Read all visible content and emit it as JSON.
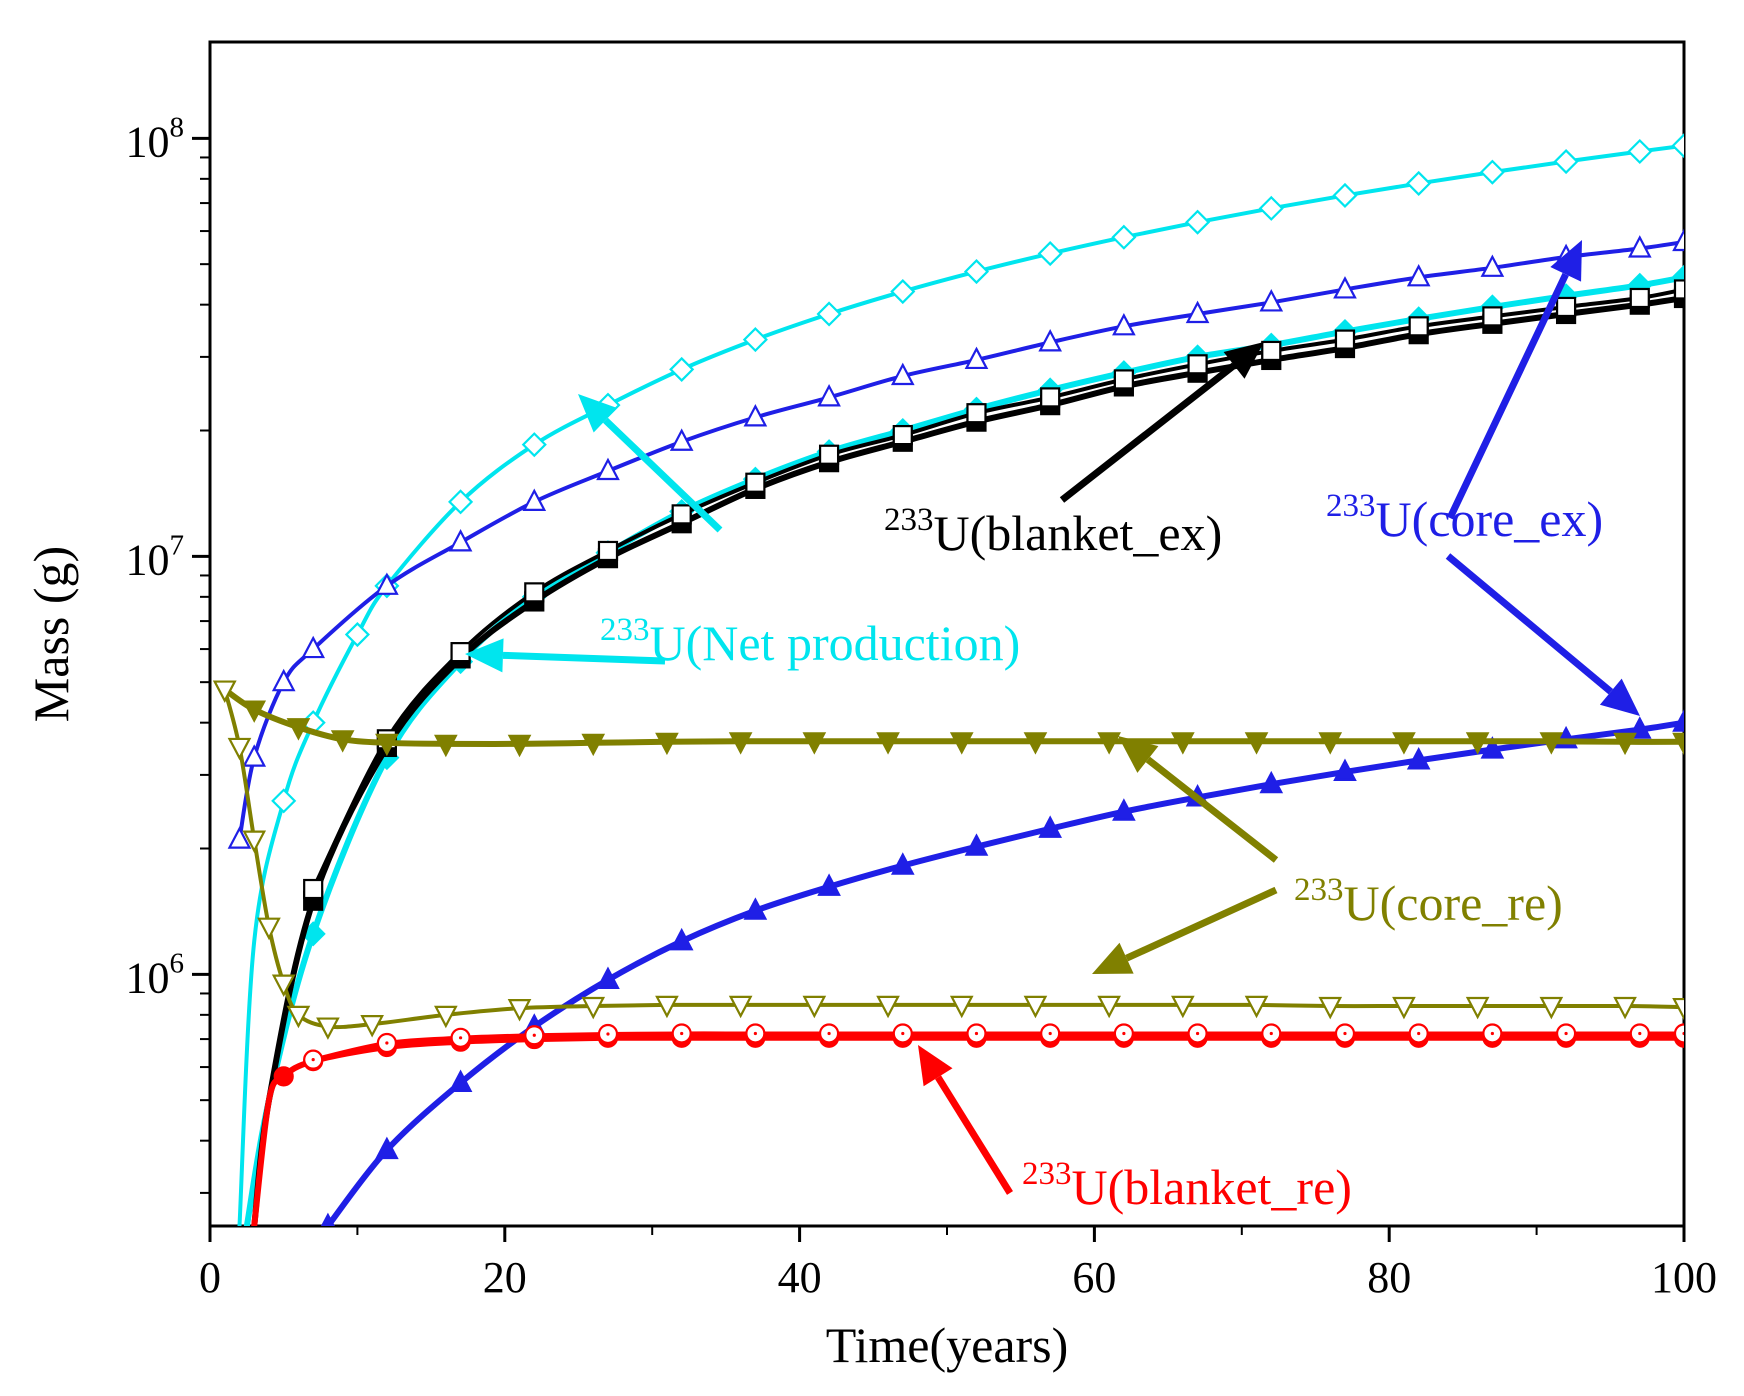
{
  "chart_data": {
    "type": "line",
    "title": "",
    "xlabel": "Time(years)",
    "ylabel": "Mass  (g)",
    "xlim": [
      0,
      100
    ],
    "ylim": [
      250000,
      170000000
    ],
    "yscale": "log",
    "xticks": [
      0,
      20,
      40,
      60,
      80,
      100
    ],
    "xtick_labels": [
      "0",
      "20",
      "40",
      "60",
      "80",
      "100"
    ],
    "yticks": [
      1000000,
      10000000,
      100000000
    ],
    "ytick_labels": [
      {
        "base": "10",
        "exp": "6"
      },
      {
        "base": "10",
        "exp": "7"
      },
      {
        "base": "10",
        "exp": "8"
      }
    ],
    "grid": false,
    "series": [
      {
        "name": "233U(Net production)",
        "color": "#00e5ee",
        "marker": "diamond-open",
        "x": [
          2,
          3,
          5,
          7,
          10,
          12,
          17,
          22,
          27,
          32,
          37,
          42,
          47,
          52,
          57,
          62,
          67,
          72,
          77,
          82,
          87,
          92,
          97,
          100
        ],
        "y": [
          250000,
          1200000,
          2600000,
          4000000,
          6500000,
          8500000,
          13500000,
          18500000,
          23000000,
          28000000,
          33000000,
          38000000,
          43000000,
          48000000,
          53000000,
          58000000,
          63000000,
          68000000,
          73000000,
          78000000,
          83000000,
          88000000,
          93000000,
          96000000
        ]
      },
      {
        "name": "233U(core_ex) open",
        "color": "#1f1fe6",
        "marker": "triangle-up-open",
        "x": [
          2,
          3,
          5,
          7,
          12,
          17,
          22,
          27,
          32,
          37,
          42,
          47,
          52,
          57,
          62,
          67,
          72,
          77,
          82,
          87,
          92,
          97,
          100
        ],
        "y": [
          2100000,
          3300000,
          5000000,
          6000000,
          8500000,
          10800000,
          13500000,
          16000000,
          18800000,
          21500000,
          24000000,
          27000000,
          29500000,
          32500000,
          35500000,
          38000000,
          40500000,
          43500000,
          46500000,
          49000000,
          52000000,
          54500000,
          56500000
        ]
      },
      {
        "name": "233U(Net production) filled",
        "color": "#00e5ee",
        "marker": "diamond-filled",
        "x": [
          2.5,
          4,
          7,
          12,
          17,
          22,
          27,
          32,
          37,
          42,
          47,
          52,
          57,
          62,
          67,
          72,
          77,
          82,
          87,
          92,
          97,
          100
        ],
        "y": [
          250000,
          500000,
          1250000,
          3300000,
          5600000,
          8000000,
          10200000,
          12800000,
          15300000,
          17800000,
          20000000,
          22500000,
          25000000,
          27500000,
          30000000,
          32000000,
          34500000,
          37000000,
          39500000,
          42000000,
          44500000,
          46500000
        ]
      },
      {
        "name": "233U(blanket_ex) filled",
        "color": "#000000",
        "marker": "square-filled",
        "x": [
          3,
          4,
          7,
          12,
          17,
          22,
          27,
          32,
          37,
          42,
          47,
          52,
          57,
          62,
          67,
          72,
          77,
          82,
          87,
          92,
          97,
          100
        ],
        "y": [
          250000,
          500000,
          1500000,
          3500000,
          5700000,
          7800000,
          9900000,
          12000000,
          14500000,
          16800000,
          18800000,
          21000000,
          23000000,
          25500000,
          27500000,
          29500000,
          31500000,
          34000000,
          36000000,
          38000000,
          40000000,
          41500000
        ]
      },
      {
        "name": "233U(blanket_ex) open",
        "color": "#000000",
        "marker": "square-open",
        "x": [
          7,
          12,
          17,
          22,
          27,
          32,
          37,
          42,
          47,
          52,
          57,
          62,
          67,
          72,
          77,
          82,
          87,
          92,
          97,
          100
        ],
        "y": [
          1600000,
          3650000,
          5900000,
          8200000,
          10300000,
          12600000,
          15000000,
          17500000,
          19500000,
          22000000,
          24000000,
          26500000,
          28800000,
          31000000,
          33000000,
          35500000,
          37500000,
          39500000,
          41500000,
          43500000
        ]
      },
      {
        "name": "233U(core_ex) filled",
        "color": "#1f1fe6",
        "marker": "triangle-up-filled",
        "x": [
          8,
          12,
          17,
          22,
          27,
          32,
          37,
          42,
          47,
          52,
          57,
          62,
          67,
          72,
          77,
          82,
          87,
          92,
          97,
          100
        ],
        "y": [
          250000,
          380000,
          550000,
          750000,
          970000,
          1200000,
          1420000,
          1620000,
          1820000,
          2020000,
          2230000,
          2450000,
          2650000,
          2850000,
          3050000,
          3250000,
          3450000,
          3650000,
          3850000,
          4000000
        ]
      },
      {
        "name": "233U(core_re) filled",
        "color": "#808000",
        "marker": "triangle-down-filled",
        "x": [
          1,
          3,
          6,
          9,
          12,
          16,
          21,
          26,
          31,
          36,
          41,
          46,
          51,
          56,
          61,
          66,
          71,
          76,
          81,
          86,
          91,
          96,
          100
        ],
        "y": [
          4800000,
          4300000,
          3900000,
          3650000,
          3580000,
          3560000,
          3560000,
          3580000,
          3600000,
          3610000,
          3610000,
          3610000,
          3610000,
          3610000,
          3610000,
          3610000,
          3610000,
          3610000,
          3610000,
          3610000,
          3610000,
          3600000,
          3600000
        ]
      },
      {
        "name": "233U(core_re) open",
        "color": "#808000",
        "marker": "triangle-down-open",
        "x": [
          1,
          2,
          3,
          4,
          5,
          6,
          8,
          11,
          16,
          21,
          26,
          31,
          36,
          41,
          46,
          51,
          56,
          61,
          66,
          71,
          76,
          81,
          86,
          91,
          96,
          100
        ],
        "y": [
          4800000,
          3500000,
          2100000,
          1300000,
          950000,
          800000,
          750000,
          760000,
          800000,
          830000,
          840000,
          845000,
          845000,
          845000,
          845000,
          845000,
          845000,
          845000,
          845000,
          845000,
          840000,
          840000,
          840000,
          840000,
          840000,
          835000
        ]
      },
      {
        "name": "233U(blanket_re) filled",
        "color": "#ff0000",
        "marker": "circle-filled",
        "x": [
          3,
          4,
          5,
          7,
          12,
          17,
          22,
          27,
          32,
          37,
          42,
          47,
          52,
          57,
          62,
          67,
          72,
          77,
          82,
          87,
          92,
          97,
          100
        ],
        "y": [
          250000,
          500000,
          570000,
          620000,
          670000,
          690000,
          700000,
          705000,
          705000,
          705000,
          705000,
          705000,
          705000,
          705000,
          705000,
          705000,
          705000,
          705000,
          705000,
          705000,
          705000,
          705000,
          705000
        ]
      },
      {
        "name": "233U(blanket_re) open",
        "color": "#ff0000",
        "marker": "circle-open",
        "x": [
          7,
          12,
          17,
          22,
          27,
          32,
          37,
          42,
          47,
          52,
          57,
          62,
          67,
          72,
          77,
          82,
          87,
          92,
          97,
          100
        ],
        "y": [
          625000,
          685000,
          705000,
          715000,
          720000,
          722000,
          722000,
          722000,
          722000,
          722000,
          722000,
          722000,
          722000,
          722000,
          722000,
          722000,
          722000,
          722000,
          722000,
          722000
        ]
      }
    ],
    "annotations": [
      {
        "name": "annotation-net-production",
        "sup": "233",
        "text": "U(Net production)",
        "color": "#00e5ee"
      },
      {
        "name": "annotation-blanket-ex",
        "sup": "233",
        "text": "U(blanket_ex)",
        "color": "#000000"
      },
      {
        "name": "annotation-core-ex",
        "sup": "233",
        "text": "U(core_ex)",
        "color": "#1f1fe6"
      },
      {
        "name": "annotation-core-re",
        "sup": "233",
        "text": "U(core_re)",
        "color": "#808000"
      },
      {
        "name": "annotation-blanket-re",
        "sup": "233",
        "text": "U(blanket_re)",
        "color": "#ff0000"
      }
    ]
  }
}
